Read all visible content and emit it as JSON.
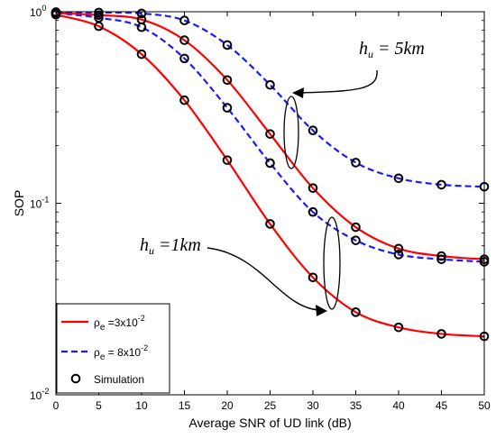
{
  "chart_data": {
    "type": "line",
    "xlabel": "Average SNR of UD link (dB)",
    "ylabel": "SOP",
    "xlim": [
      0,
      50
    ],
    "ylim": [
      0.01,
      1
    ],
    "yscale": "log",
    "xticks": [
      "0",
      "5",
      "10",
      "15",
      "20",
      "25",
      "30",
      "35",
      "40",
      "45",
      "50"
    ],
    "yticks": [
      {
        "base": "10",
        "exp": "0",
        "value": 1
      },
      {
        "base": "10",
        "exp": "-1",
        "value": 0.1
      },
      {
        "base": "10",
        "exp": "-2",
        "value": 0.01
      }
    ],
    "grid": false,
    "legend_position": "bottom-left",
    "series": [
      {
        "name_base": "ρ",
        "name_sub": "e",
        "name_rest": " =3x10",
        "name_exp": "-2",
        "style": "solid",
        "color": "#ff0000",
        "group": "hu = 1km",
        "x": [
          0,
          5,
          10,
          15,
          20,
          25,
          30,
          35,
          40,
          45,
          50
        ],
        "y": [
          0.965,
          0.84,
          0.6,
          0.345,
          0.168,
          0.078,
          0.041,
          0.027,
          0.0225,
          0.0208,
          0.0202
        ]
      },
      {
        "name_base": "ρ",
        "name_sub": "e",
        "name_rest": " = 8x10",
        "name_exp": "-2",
        "style": "dashed",
        "color": "#1a1aff",
        "group": "hu = 1km",
        "x": [
          0,
          5,
          10,
          15,
          20,
          25,
          30,
          35,
          40,
          45,
          50
        ],
        "y": [
          0.985,
          0.93,
          0.83,
          0.57,
          0.315,
          0.162,
          0.09,
          0.064,
          0.054,
          0.051,
          0.0495
        ]
      },
      {
        "name_base": "ρ",
        "name_sub": "e",
        "name_rest": " =3x10",
        "name_exp": "-2",
        "style": "solid",
        "color": "#ff0000",
        "group": "hu = 5km",
        "x": [
          0,
          5,
          10,
          15,
          20,
          25,
          30,
          35,
          40,
          45,
          50
        ],
        "y": [
          0.985,
          0.96,
          0.91,
          0.71,
          0.44,
          0.23,
          0.12,
          0.075,
          0.058,
          0.053,
          0.051
        ]
      },
      {
        "name_base": "ρ",
        "name_sub": "e",
        "name_rest": " = 8x10",
        "name_exp": "-2",
        "style": "dashed",
        "color": "#1a1aff",
        "group": "hu = 5km",
        "x": [
          0,
          5,
          10,
          15,
          20,
          25,
          30,
          35,
          40,
          45,
          50
        ],
        "y": [
          0.995,
          0.99,
          0.98,
          0.9,
          0.67,
          0.415,
          0.24,
          0.163,
          0.135,
          0.125,
          0.122
        ]
      }
    ],
    "simulation_label": "Simulation",
    "annotations": [
      {
        "base": "h",
        "sub": "u",
        "rest": " = 5km"
      },
      {
        "base": "h",
        "sub": "u",
        "rest": " =1km"
      }
    ]
  }
}
